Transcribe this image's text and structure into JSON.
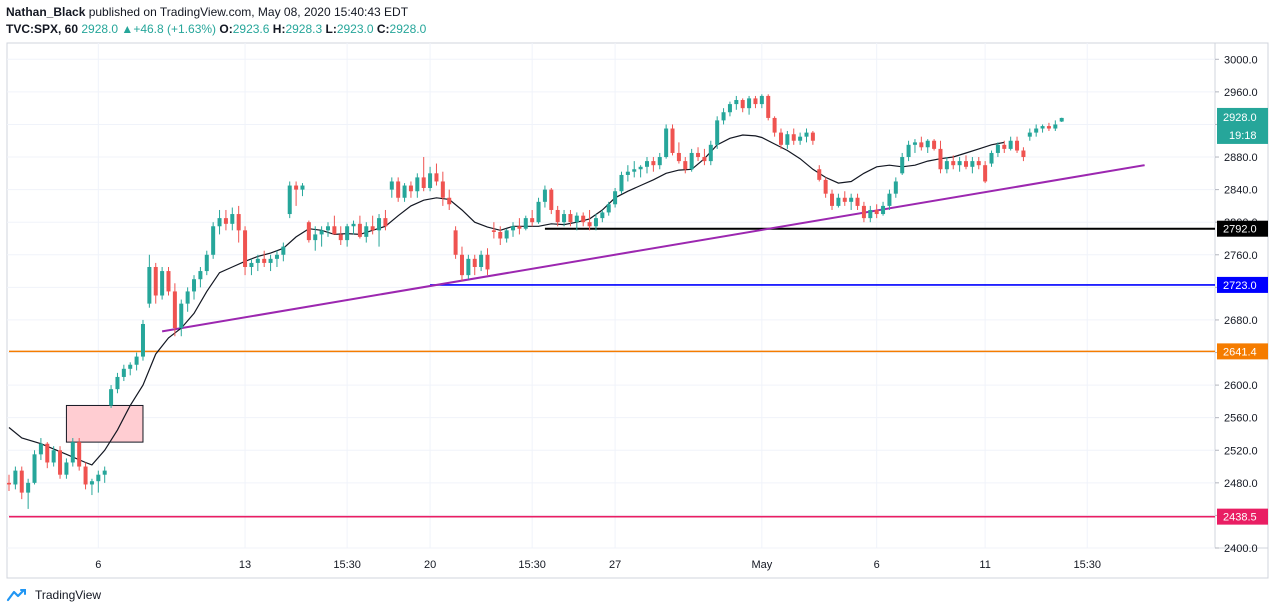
{
  "header": {
    "author": "Nathan_Black",
    "published": " published on TradingView.com, May 08, 2020 15:40:43 EDT"
  },
  "ohlc": {
    "symbol": "TVC:SPX, 60",
    "last": "2928.0",
    "change": "+46.8 (+1.63%)",
    "open_label": "O:",
    "open": "2923.6",
    "high_label": "H:",
    "high": "2928.3",
    "low_label": "L:",
    "low": "2923.0",
    "close_label": "C:",
    "close": "2928.0"
  },
  "footer": {
    "brand": "TradingView"
  },
  "colors": {
    "up": "#26a69a",
    "down": "#ef5350",
    "ma": "#131722",
    "trend": "#9c27b0",
    "black_level": "#000000",
    "blue_level": "#0000ff",
    "orange_level": "#f57c00",
    "pink_level": "#e91e63",
    "box_fill": "#ffcdd2"
  },
  "chart_data": {
    "type": "candlestick",
    "y_axis": {
      "min": 2400,
      "max": 3020,
      "ticks": [
        2400,
        2440,
        2480,
        2520,
        2560,
        2600,
        2640,
        2680,
        2720,
        2760,
        2800,
        2840,
        2880,
        2920,
        2960,
        3000
      ],
      "tick_labels": [
        "2400.0",
        "2440.0",
        "2480.0",
        "2520.0",
        "2560.0",
        "2600.0",
        "2640.0",
        "2680.0",
        "2720.0",
        "2760.0",
        "2800.0",
        "2840.0",
        "2880.0",
        "2920.0",
        "2960.0",
        "3000.0"
      ]
    },
    "x_axis": {
      "ticks": [
        {
          "label": "6",
          "i": 14
        },
        {
          "label": "13",
          "i": 37
        },
        {
          "label": "15:30",
          "i": 53
        },
        {
          "label": "20",
          "i": 66
        },
        {
          "label": "15:30",
          "i": 82
        },
        {
          "label": "27",
          "i": 95
        },
        {
          "label": "May",
          "i": 118
        },
        {
          "label": "6",
          "i": 136
        },
        {
          "label": "11",
          "i": 153
        },
        {
          "label": "15:30",
          "i": 169
        }
      ]
    },
    "bars": [
      [
        2480,
        2490,
        2470,
        2478
      ],
      [
        2478,
        2500,
        2472,
        2495
      ],
      [
        2495,
        2500,
        2460,
        2468
      ],
      [
        2468,
        2485,
        2448,
        2480
      ],
      [
        2480,
        2520,
        2478,
        2515
      ],
      [
        2515,
        2535,
        2508,
        2528
      ],
      [
        2528,
        2530,
        2498,
        2505
      ],
      [
        2505,
        2525,
        2500,
        2520
      ],
      [
        2520,
        2525,
        2485,
        2490
      ],
      [
        2490,
        2510,
        2485,
        2505
      ],
      [
        2505,
        2535,
        2500,
        2530
      ],
      [
        2530,
        2535,
        2495,
        2500
      ],
      [
        2500,
        2505,
        2472,
        2478
      ],
      [
        2478,
        2485,
        2465,
        2482
      ],
      [
        2482,
        2495,
        2468,
        2490
      ],
      [
        2490,
        2500,
        2480,
        2495
      ],
      [
        2575,
        2600,
        2572,
        2595
      ],
      [
        2595,
        2615,
        2590,
        2610
      ],
      [
        2610,
        2625,
        2605,
        2620
      ],
      [
        2620,
        2628,
        2612,
        2625
      ],
      [
        2625,
        2640,
        2618,
        2635
      ],
      [
        2635,
        2680,
        2630,
        2675
      ],
      [
        2700,
        2760,
        2695,
        2745
      ],
      [
        2745,
        2750,
        2700,
        2710
      ],
      [
        2710,
        2745,
        2705,
        2740
      ],
      [
        2740,
        2745,
        2710,
        2715
      ],
      [
        2715,
        2725,
        2660,
        2670
      ],
      [
        2670,
        2705,
        2660,
        2700
      ],
      [
        2700,
        2720,
        2690,
        2715
      ],
      [
        2715,
        2735,
        2705,
        2730
      ],
      [
        2730,
        2745,
        2720,
        2740
      ],
      [
        2740,
        2765,
        2735,
        2760
      ],
      [
        2760,
        2800,
        2755,
        2795
      ],
      [
        2795,
        2815,
        2785,
        2805
      ],
      [
        2805,
        2815,
        2790,
        2798
      ],
      [
        2798,
        2818,
        2790,
        2810
      ],
      [
        2810,
        2820,
        2775,
        2790
      ],
      [
        2790,
        2795,
        2735,
        2745
      ],
      [
        2745,
        2755,
        2735,
        2750
      ],
      [
        2750,
        2760,
        2740,
        2755
      ],
      [
        2755,
        2765,
        2745,
        2750
      ],
      [
        2750,
        2760,
        2740,
        2755
      ],
      [
        2755,
        2765,
        2745,
        2760
      ],
      [
        2760,
        2775,
        2752,
        2770
      ],
      [
        2810,
        2850,
        2805,
        2845
      ],
      [
        2845,
        2850,
        2820,
        2840
      ],
      [
        2840,
        2848,
        2832,
        2845
      ],
      [
        2800,
        2802,
        2775,
        2778
      ],
      [
        2778,
        2795,
        2765,
        2785
      ],
      [
        2785,
        2795,
        2770,
        2790
      ],
      [
        2790,
        2800,
        2782,
        2795
      ],
      [
        2795,
        2808,
        2785,
        2785
      ],
      [
        2785,
        2795,
        2772,
        2778
      ],
      [
        2778,
        2798,
        2770,
        2795
      ],
      [
        2795,
        2802,
        2785,
        2798
      ],
      [
        2798,
        2808,
        2780,
        2782
      ],
      [
        2782,
        2800,
        2775,
        2795
      ],
      [
        2795,
        2808,
        2785,
        2790
      ],
      [
        2790,
        2810,
        2770,
        2805
      ],
      [
        2805,
        2815,
        2790,
        2795
      ],
      [
        2840,
        2855,
        2830,
        2850
      ],
      [
        2850,
        2855,
        2825,
        2830
      ],
      [
        2830,
        2848,
        2825,
        2845
      ],
      [
        2845,
        2850,
        2830,
        2838
      ],
      [
        2838,
        2860,
        2830,
        2855
      ],
      [
        2855,
        2880,
        2838,
        2842
      ],
      [
        2842,
        2868,
        2838,
        2860
      ],
      [
        2860,
        2872,
        2845,
        2850
      ],
      [
        2850,
        2862,
        2820,
        2830
      ],
      [
        2830,
        2840,
        2815,
        2822
      ],
      [
        2790,
        2795,
        2755,
        2760
      ],
      [
        2760,
        2770,
        2728,
        2735
      ],
      [
        2735,
        2760,
        2730,
        2755
      ],
      [
        2755,
        2760,
        2735,
        2745
      ],
      [
        2745,
        2765,
        2740,
        2760
      ],
      [
        2760,
        2768,
        2735,
        2742
      ],
      [
        2790,
        2800,
        2780,
        2788
      ],
      [
        2788,
        2795,
        2772,
        2780
      ],
      [
        2780,
        2792,
        2775,
        2790
      ],
      [
        2790,
        2800,
        2782,
        2795
      ],
      [
        2795,
        2805,
        2785,
        2792
      ],
      [
        2792,
        2808,
        2790,
        2805
      ],
      [
        2805,
        2815,
        2795,
        2800
      ],
      [
        2800,
        2830,
        2798,
        2825
      ],
      [
        2825,
        2845,
        2818,
        2840
      ],
      [
        2840,
        2842,
        2810,
        2815
      ],
      [
        2815,
        2820,
        2795,
        2800
      ],
      [
        2800,
        2815,
        2795,
        2810
      ],
      [
        2810,
        2815,
        2795,
        2800
      ],
      [
        2800,
        2812,
        2790,
        2808
      ],
      [
        2808,
        2812,
        2795,
        2800
      ],
      [
        2800,
        2815,
        2790,
        2795
      ],
      [
        2795,
        2810,
        2790,
        2805
      ],
      [
        2805,
        2815,
        2800,
        2812
      ],
      [
        2812,
        2825,
        2808,
        2822
      ],
      [
        2822,
        2842,
        2818,
        2838
      ],
      [
        2838,
        2862,
        2835,
        2858
      ],
      [
        2858,
        2870,
        2850,
        2862
      ],
      [
        2862,
        2875,
        2855,
        2865
      ],
      [
        2865,
        2870,
        2855,
        2868
      ],
      [
        2868,
        2880,
        2860,
        2875
      ],
      [
        2875,
        2880,
        2862,
        2870
      ],
      [
        2870,
        2885,
        2865,
        2880
      ],
      [
        2880,
        2920,
        2878,
        2915
      ],
      [
        2915,
        2920,
        2882,
        2885
      ],
      [
        2885,
        2898,
        2872,
        2875
      ],
      [
        2875,
        2880,
        2860,
        2865
      ],
      [
        2865,
        2890,
        2862,
        2885
      ],
      [
        2885,
        2892,
        2875,
        2880
      ],
      [
        2880,
        2890,
        2870,
        2875
      ],
      [
        2875,
        2900,
        2870,
        2895
      ],
      [
        2895,
        2930,
        2890,
        2925
      ],
      [
        2925,
        2940,
        2920,
        2935
      ],
      [
        2935,
        2948,
        2930,
        2945
      ],
      [
        2945,
        2955,
        2938,
        2950
      ],
      [
        2950,
        2952,
        2935,
        2940
      ],
      [
        2940,
        2955,
        2932,
        2952
      ],
      [
        2952,
        2955,
        2940,
        2945
      ],
      [
        2945,
        2957,
        2940,
        2955
      ],
      [
        2955,
        2957,
        2925,
        2928
      ],
      [
        2928,
        2930,
        2905,
        2910
      ],
      [
        2910,
        2915,
        2890,
        2895
      ],
      [
        2895,
        2912,
        2890,
        2908
      ],
      [
        2908,
        2915,
        2895,
        2900
      ],
      [
        2900,
        2910,
        2895,
        2905
      ],
      [
        2905,
        2915,
        2898,
        2910
      ],
      [
        2910,
        2912,
        2895,
        2900
      ],
      [
        2865,
        2870,
        2850,
        2852
      ],
      [
        2852,
        2855,
        2830,
        2835
      ],
      [
        2835,
        2840,
        2815,
        2820
      ],
      [
        2820,
        2835,
        2818,
        2830
      ],
      [
        2830,
        2838,
        2820,
        2825
      ],
      [
        2825,
        2835,
        2815,
        2830
      ],
      [
        2830,
        2835,
        2815,
        2820
      ],
      [
        2820,
        2825,
        2800,
        2805
      ],
      [
        2805,
        2820,
        2800,
        2815
      ],
      [
        2815,
        2822,
        2805,
        2810
      ],
      [
        2810,
        2825,
        2808,
        2820
      ],
      [
        2820,
        2840,
        2815,
        2835
      ],
      [
        2835,
        2855,
        2830,
        2850
      ],
      [
        2860,
        2885,
        2858,
        2880
      ],
      [
        2880,
        2900,
        2875,
        2895
      ],
      [
        2895,
        2902,
        2885,
        2898
      ],
      [
        2898,
        2905,
        2888,
        2892
      ],
      [
        2892,
        2902,
        2885,
        2900
      ],
      [
        2900,
        2902,
        2888,
        2890
      ],
      [
        2890,
        2900,
        2860,
        2865
      ],
      [
        2865,
        2880,
        2860,
        2875
      ],
      [
        2875,
        2882,
        2865,
        2870
      ],
      [
        2870,
        2880,
        2862,
        2875
      ],
      [
        2875,
        2882,
        2865,
        2868
      ],
      [
        2868,
        2880,
        2860,
        2875
      ],
      [
        2875,
        2880,
        2865,
        2870
      ],
      [
        2870,
        2875,
        2848,
        2850
      ],
      [
        2872,
        2888,
        2868,
        2885
      ],
      [
        2885,
        2898,
        2880,
        2895
      ],
      [
        2895,
        2900,
        2885,
        2890
      ],
      [
        2890,
        2905,
        2888,
        2900
      ],
      [
        2900,
        2905,
        2885,
        2888
      ],
      [
        2888,
        2892,
        2875,
        2880
      ],
      [
        2905,
        2915,
        2900,
        2910
      ],
      [
        2910,
        2920,
        2905,
        2915
      ],
      [
        2915,
        2920,
        2910,
        2918
      ],
      [
        2918,
        2922,
        2912,
        2915
      ],
      [
        2915,
        2925,
        2912,
        2920
      ],
      [
        2923.6,
        2928.3,
        2923,
        2928
      ]
    ],
    "ma_line": [
      [
        0,
        2548
      ],
      [
        2,
        2535
      ],
      [
        5,
        2528
      ],
      [
        9,
        2515
      ],
      [
        12,
        2505
      ],
      [
        13,
        2502
      ],
      [
        15,
        2520
      ],
      [
        17,
        2545
      ],
      [
        19,
        2575
      ],
      [
        21,
        2600
      ],
      [
        23,
        2638
      ],
      [
        25,
        2658
      ],
      [
        27,
        2670
      ],
      [
        29,
        2688
      ],
      [
        31,
        2715
      ],
      [
        33,
        2738
      ],
      [
        35,
        2745
      ],
      [
        37,
        2752
      ],
      [
        39,
        2758
      ],
      [
        41,
        2762
      ],
      [
        43,
        2768
      ],
      [
        45,
        2782
      ],
      [
        47,
        2792
      ],
      [
        49,
        2790
      ],
      [
        51,
        2785
      ],
      [
        53,
        2786
      ],
      [
        55,
        2785
      ],
      [
        57,
        2790
      ],
      [
        59,
        2795
      ],
      [
        61,
        2808
      ],
      [
        63,
        2820
      ],
      [
        65,
        2827
      ],
      [
        67,
        2830
      ],
      [
        69,
        2828
      ],
      [
        71,
        2815
      ],
      [
        73,
        2800
      ],
      [
        75,
        2794
      ],
      [
        77,
        2790
      ],
      [
        79,
        2795
      ],
      [
        81,
        2795
      ],
      [
        83,
        2795
      ],
      [
        85,
        2798
      ],
      [
        87,
        2797
      ],
      [
        89,
        2800
      ],
      [
        91,
        2804
      ],
      [
        93,
        2815
      ],
      [
        95,
        2830
      ],
      [
        97,
        2838
      ],
      [
        99,
        2845
      ],
      [
        101,
        2852
      ],
      [
        103,
        2860
      ],
      [
        105,
        2864
      ],
      [
        107,
        2865
      ],
      [
        109,
        2878
      ],
      [
        111,
        2895
      ],
      [
        113,
        2903
      ],
      [
        115,
        2907
      ],
      [
        117,
        2906
      ],
      [
        118,
        2904
      ],
      [
        120,
        2896
      ],
      [
        122,
        2888
      ],
      [
        124,
        2878
      ],
      [
        126,
        2865
      ],
      [
        128,
        2855
      ],
      [
        130,
        2848
      ],
      [
        132,
        2850
      ],
      [
        134,
        2860
      ],
      [
        136,
        2868
      ],
      [
        138,
        2870
      ],
      [
        140,
        2868
      ],
      [
        142,
        2870
      ],
      [
        144,
        2875
      ],
      [
        146,
        2878
      ],
      [
        148,
        2880
      ],
      [
        150,
        2885
      ],
      [
        152,
        2890
      ],
      [
        154,
        2895
      ],
      [
        156,
        2898
      ]
    ],
    "levels": [
      {
        "name": "black",
        "value": 2792.0,
        "label": "2792.0",
        "from_i": 84
      },
      {
        "name": "blue",
        "value": 2723.0,
        "label": "2723.0",
        "from_i": 66
      },
      {
        "name": "orange",
        "value": 2641.4,
        "label": "2641.4",
        "from_i": 0
      },
      {
        "name": "pink",
        "value": 2438.5,
        "label": "2438.5",
        "from_i": 0
      }
    ],
    "trendline": {
      "from": [
        24,
        2666
      ],
      "to": [
        178,
        2870
      ]
    },
    "rect": {
      "i1": 9,
      "i2": 21,
      "y1": 2575,
      "y2": 2530
    },
    "last_price": {
      "label": "2928.0",
      "countdown": "19:18",
      "value": 2928
    }
  }
}
